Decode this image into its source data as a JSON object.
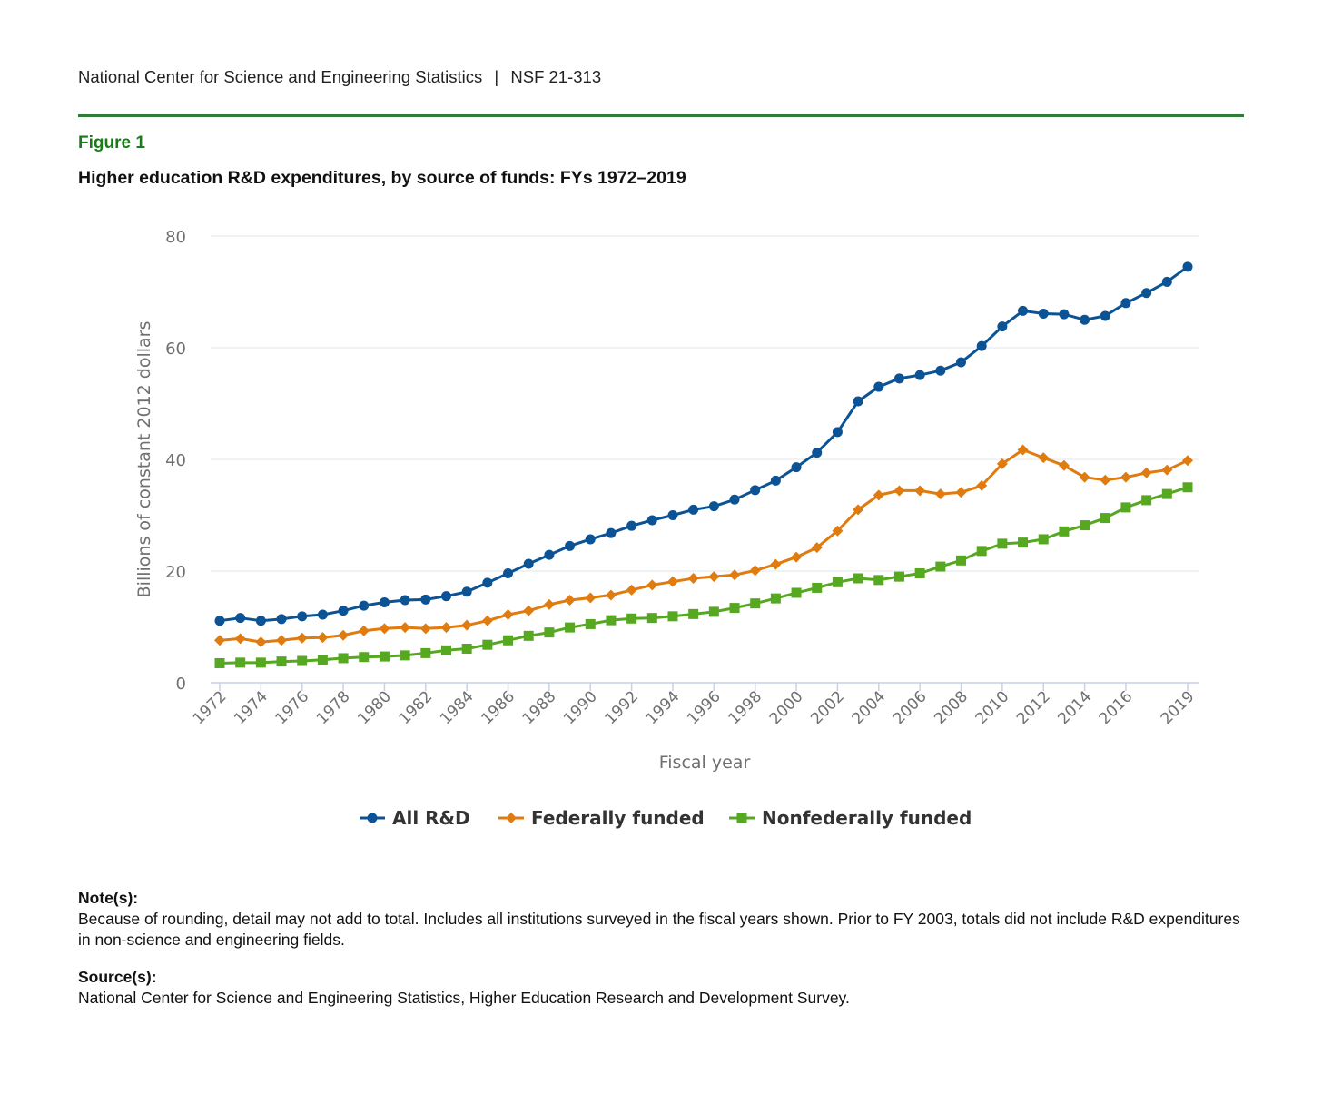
{
  "header": {
    "org": "National Center for Science and Engineering Statistics",
    "separator": "|",
    "report": "NSF 21-313"
  },
  "figure": {
    "label": "Figure 1",
    "title": "Higher education R&D expenditures, by source of funds: FYs 1972–2019"
  },
  "notes": {
    "note_heading": "Note(s):",
    "note_text": "Because of rounding, detail may not add to total. Includes all institutions surveyed in the fiscal years shown. Prior to FY 2003, totals did not include R&D expenditures in non-science and engineering fields.",
    "source_heading": "Source(s):",
    "source_text": "National Center for Science and Engineering Statistics, Higher Education Research and Development Survey."
  },
  "colors": {
    "all": "#0b5394",
    "federal": "#e07b10",
    "nonfederal": "#56a821",
    "grid": "#e2e6ea",
    "axis": "#c5d2e8",
    "tick_text": "#707070",
    "rule": "#2e7d32",
    "figure_label": "#1b7a1b"
  },
  "chart_data": {
    "type": "line",
    "xlabel": "Fiscal year",
    "ylabel": "Billions of constant 2012 dollars",
    "ylim": [
      0,
      80
    ],
    "yticks": [
      0,
      20,
      40,
      60,
      80
    ],
    "xticks": [
      1972,
      1974,
      1976,
      1978,
      1980,
      1982,
      1984,
      1986,
      1988,
      1990,
      1992,
      1994,
      1996,
      1998,
      2000,
      2002,
      2004,
      2006,
      2008,
      2010,
      2012,
      2014,
      2016,
      2019
    ],
    "grid": true,
    "legend_position": "bottom-center",
    "x": [
      1972,
      1973,
      1974,
      1975,
      1976,
      1977,
      1978,
      1979,
      1980,
      1981,
      1982,
      1983,
      1984,
      1985,
      1986,
      1987,
      1988,
      1989,
      1990,
      1991,
      1992,
      1993,
      1994,
      1995,
      1996,
      1997,
      1998,
      1999,
      2000,
      2001,
      2002,
      2003,
      2004,
      2005,
      2006,
      2007,
      2008,
      2009,
      2010,
      2011,
      2012,
      2013,
      2014,
      2015,
      2016,
      2017,
      2018,
      2019
    ],
    "series": [
      {
        "name": "All R&D",
        "marker": "circle",
        "color": "#0b5394",
        "values": [
          11.1,
          11.6,
          11.1,
          11.4,
          11.9,
          12.2,
          12.9,
          13.8,
          14.4,
          14.8,
          14.9,
          15.5,
          16.3,
          17.9,
          19.6,
          21.3,
          22.9,
          24.5,
          25.7,
          26.8,
          28.1,
          29.1,
          30.0,
          31.0,
          31.6,
          32.8,
          34.5,
          36.2,
          38.6,
          41.2,
          44.9,
          50.4,
          53.0,
          54.5,
          55.1,
          55.9,
          57.4,
          60.3,
          63.8,
          66.6,
          66.1,
          66.0,
          65.0,
          65.7,
          68.0,
          69.8,
          71.8,
          74.5
        ]
      },
      {
        "name": "Federally funded",
        "marker": "diamond",
        "color": "#e07b10",
        "values": [
          7.6,
          7.9,
          7.3,
          7.6,
          8.0,
          8.1,
          8.5,
          9.3,
          9.7,
          9.9,
          9.7,
          9.9,
          10.3,
          11.1,
          12.2,
          12.9,
          14.0,
          14.8,
          15.2,
          15.7,
          16.6,
          17.5,
          18.1,
          18.7,
          19.0,
          19.3,
          20.1,
          21.2,
          22.5,
          24.2,
          27.2,
          31.0,
          33.6,
          34.4,
          34.4,
          33.8,
          34.1,
          35.3,
          39.2,
          41.7,
          40.3,
          38.9,
          36.8,
          36.3,
          36.8,
          37.6,
          38.1,
          39.8
        ]
      },
      {
        "name": "Nonfederally funded",
        "marker": "square",
        "color": "#56a821",
        "values": [
          3.5,
          3.6,
          3.6,
          3.8,
          3.9,
          4.1,
          4.4,
          4.6,
          4.7,
          4.9,
          5.3,
          5.8,
          6.1,
          6.8,
          7.6,
          8.4,
          9.0,
          9.9,
          10.5,
          11.2,
          11.5,
          11.6,
          11.9,
          12.3,
          12.7,
          13.4,
          14.2,
          15.1,
          16.1,
          17.0,
          18.0,
          18.7,
          18.4,
          19.0,
          19.6,
          20.8,
          21.9,
          23.6,
          24.9,
          25.1,
          25.7,
          27.1,
          28.2,
          29.5,
          31.4,
          32.7,
          33.8,
          35.0
        ]
      }
    ]
  }
}
